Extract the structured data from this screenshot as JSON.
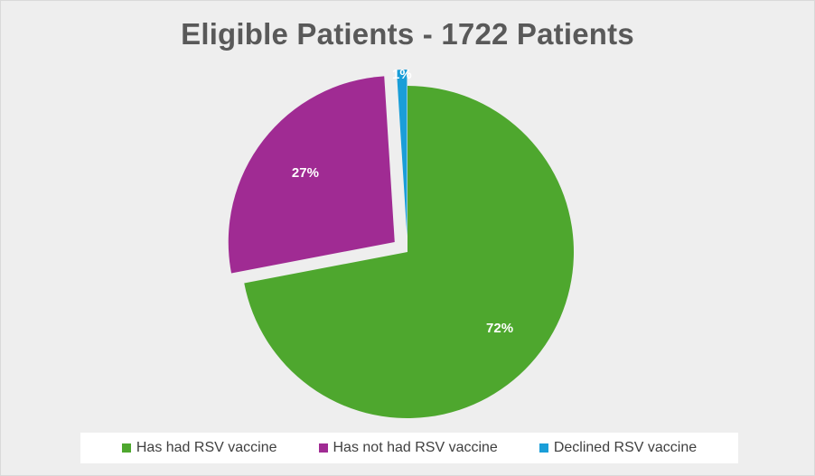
{
  "chart_data": {
    "type": "pie",
    "title": "Eligible Patients - 1722 Patients",
    "categories": [
      "Has had RSV vaccine",
      "Has not had RSV vaccine",
      "Declined RSV vaccine"
    ],
    "values": [
      72,
      27,
      1
    ],
    "data_labels": [
      "72%",
      "27%",
      "1%"
    ],
    "colors": [
      "#4ea72e",
      "#a02b93",
      "#1a9ed8"
    ],
    "exploded": [
      false,
      true,
      true
    ],
    "legend_position": "bottom",
    "start_angle_deg": 0,
    "direction": "clockwise"
  }
}
